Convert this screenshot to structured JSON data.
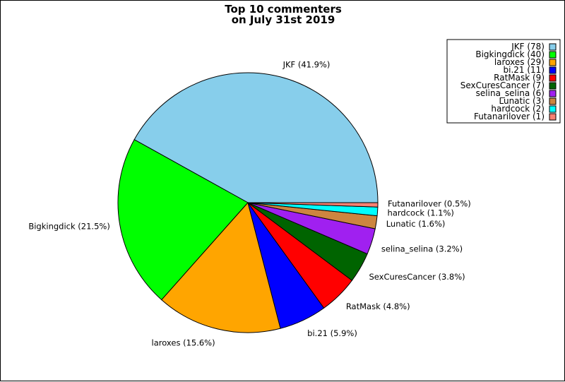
{
  "chart_data": {
    "type": "pie",
    "title_lines": [
      "Top 10 commenters",
      "on July 31st 2019"
    ],
    "slices": [
      {
        "name": "JKF",
        "value": 78,
        "percent_label": "41.9%",
        "color": "#87CEEB"
      },
      {
        "name": "Bigkingdick",
        "value": 40,
        "percent_label": "21.5%",
        "color": "#00FF00"
      },
      {
        "name": "laroxes",
        "value": 29,
        "percent_label": "15.6%",
        "color": "#FFA500"
      },
      {
        "name": "bi.21",
        "value": 11,
        "percent_label": "5.9%",
        "color": "#0000FF"
      },
      {
        "name": "RatMask",
        "value": 9,
        "percent_label": "4.8%",
        "color": "#FF0000"
      },
      {
        "name": "SexCuresCancer",
        "value": 7,
        "percent_label": "3.8%",
        "color": "#006400"
      },
      {
        "name": "selina_selina",
        "value": 6,
        "percent_label": "3.2%",
        "color": "#A020F0"
      },
      {
        "name": "Lunatic",
        "value": 3,
        "percent_label": "1.6%",
        "color": "#CD853F"
      },
      {
        "name": "hardcock",
        "value": 2,
        "percent_label": "1.1%",
        "color": "#00FFFF"
      },
      {
        "name": "Futanarilover",
        "value": 1,
        "percent_label": "0.5%",
        "color": "#FA8072"
      }
    ],
    "legend_position": "top-right"
  }
}
